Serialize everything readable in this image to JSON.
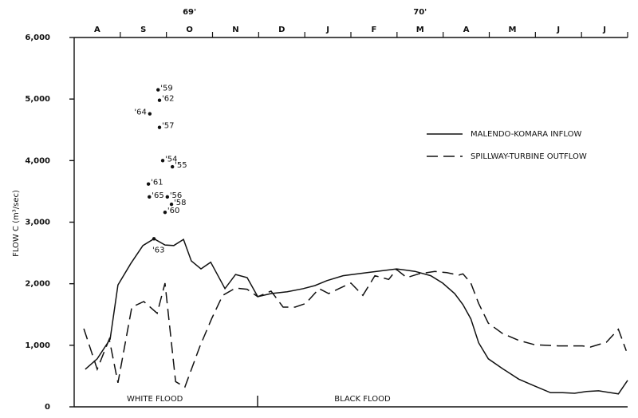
{
  "chart_data": {
    "type": "line",
    "y_label": "FLOW C (m³/sec)",
    "categories": [
      "A",
      "S",
      "O",
      "N",
      "D",
      "J",
      "F",
      "M",
      "A",
      "M",
      "J",
      "J"
    ],
    "year_labels": [
      {
        "text": "69'",
        "x": 2.5
      },
      {
        "text": "70'",
        "x": 7.5
      }
    ],
    "annotations": [
      {
        "text": "WHITE FLOOD",
        "x": 1.75
      },
      {
        "text": "BLACK FLOOD",
        "x": 6.25
      }
    ],
    "xlim": [
      0,
      12
    ],
    "ylim": [
      0,
      6000
    ],
    "yticks": [
      0,
      {
        "value": 1000,
        "label": "1,000"
      },
      {
        "value": 2000,
        "label": "2,000"
      },
      {
        "value": 3000,
        "label": "3,000"
      },
      {
        "value": 4000,
        "label": "4,000"
      },
      {
        "value": 5000,
        "label": "5,000"
      },
      {
        "value": 6000,
        "label": "6,000"
      }
    ],
    "series": [
      {
        "name": "MALENDO-KOMARA INFLOW",
        "color": "#111111",
        "style": "solid",
        "x": [
          0.24,
          0.5,
          0.78,
          0.95,
          1.23,
          1.49,
          1.73,
          1.97,
          2.16,
          2.37,
          2.54,
          2.75,
          2.96,
          3.27,
          3.5,
          3.75,
          3.98,
          4.27,
          4.62,
          4.97,
          5.22,
          5.48,
          5.83,
          6.35,
          6.99,
          7.39,
          7.73,
          7.99,
          8.25,
          8.43,
          8.6,
          8.77,
          8.98,
          9.29,
          9.64,
          9.98,
          10.33,
          10.59,
          10.85,
          11.11,
          11.37,
          11.63,
          11.8,
          12.0
        ],
        "values": [
          610,
          780,
          1100,
          1980,
          2330,
          2620,
          2730,
          2630,
          2620,
          2720,
          2370,
          2240,
          2350,
          1920,
          2150,
          2100,
          1790,
          1840,
          1870,
          1920,
          1970,
          2050,
          2130,
          2180,
          2240,
          2200,
          2130,
          2010,
          1840,
          1660,
          1430,
          1040,
          780,
          620,
          450,
          340,
          230,
          230,
          220,
          250,
          260,
          230,
          210,
          430
        ]
      },
      {
        "name": "SPILLWAY-TURBINE OUTFLOW",
        "color": "#111111",
        "style": "dashed",
        "x": [
          0.21,
          0.5,
          0.76,
          0.95,
          1.25,
          1.51,
          1.8,
          1.97,
          2.2,
          2.4,
          2.72,
          2.98,
          3.22,
          3.5,
          3.75,
          3.98,
          4.27,
          4.53,
          4.79,
          5.02,
          5.31,
          5.52,
          5.74,
          6.0,
          6.26,
          6.52,
          6.82,
          6.99,
          7.21,
          7.47,
          7.82,
          8.08,
          8.34,
          8.43,
          8.6,
          8.77,
          8.98,
          9.29,
          9.64,
          9.98,
          10.5,
          11.02,
          11.19,
          11.54,
          11.8,
          11.97
        ],
        "values": [
          1270,
          610,
          1100,
          390,
          1620,
          1710,
          1520,
          2010,
          410,
          320,
          970,
          1430,
          1810,
          1930,
          1910,
          1790,
          1880,
          1620,
          1620,
          1680,
          1920,
          1840,
          1920,
          2010,
          1810,
          2130,
          2070,
          2230,
          2100,
          2160,
          2200,
          2180,
          2140,
          2160,
          2010,
          1680,
          1360,
          1190,
          1080,
          1010,
          990,
          990,
          970,
          1050,
          1260,
          910
        ]
      }
    ],
    "points": [
      {
        "label": "'59",
        "x": 1.82,
        "y": 5150
      },
      {
        "label": "'62",
        "x": 1.85,
        "y": 4980
      },
      {
        "label": "'64",
        "x": 1.64,
        "y": 4760
      },
      {
        "label": "'57",
        "x": 1.85,
        "y": 4540
      },
      {
        "label": "'54",
        "x": 1.92,
        "y": 4000
      },
      {
        "label": "'55",
        "x": 2.13,
        "y": 3900
      },
      {
        "label": "'61",
        "x": 1.61,
        "y": 3620
      },
      {
        "label": "'65",
        "x": 1.63,
        "y": 3410
      },
      {
        "label": "'56",
        "x": 2.02,
        "y": 3410
      },
      {
        "label": "'58",
        "x": 2.11,
        "y": 3290
      },
      {
        "label": "'60",
        "x": 1.97,
        "y": 3160
      },
      {
        "label": "'63",
        "x": 1.73,
        "y": 2730
      }
    ]
  }
}
